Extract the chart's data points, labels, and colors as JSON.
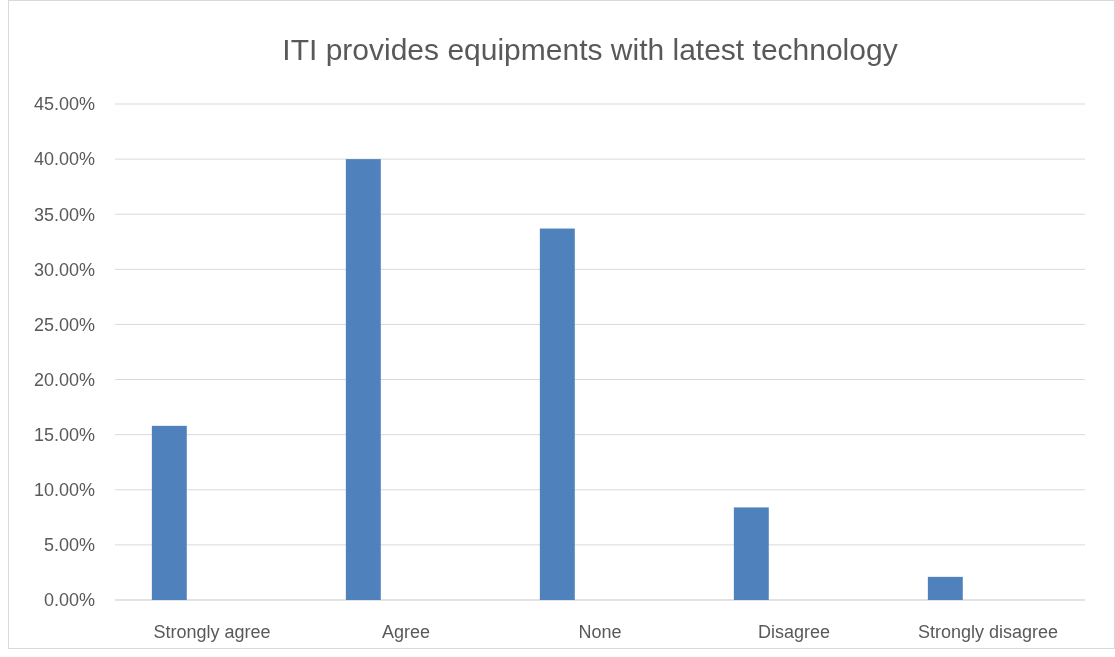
{
  "chart_data": {
    "type": "bar",
    "title": "ITI provides equipments with latest technology",
    "categories": [
      "Strongly agree",
      "Agree",
      "None",
      "Disagree",
      "Strongly disagree"
    ],
    "values": [
      15.8,
      40.0,
      33.7,
      8.4,
      2.1
    ],
    "color": "#4f81bd",
    "ylim": [
      0,
      45
    ],
    "yticks": [
      {
        "value": 0,
        "label": "0.00%"
      },
      {
        "value": 5,
        "label": "5.00%"
      },
      {
        "value": 10,
        "label": "10.00%"
      },
      {
        "value": 15,
        "label": "15.00%"
      },
      {
        "value": 20,
        "label": "20.00%"
      },
      {
        "value": 25,
        "label": "25.00%"
      },
      {
        "value": 30,
        "label": "30.00%"
      },
      {
        "value": 35,
        "label": "35.00%"
      },
      {
        "value": 40,
        "label": "40.00%"
      },
      {
        "value": 45,
        "label": "45.00%"
      }
    ],
    "grid": "y"
  }
}
